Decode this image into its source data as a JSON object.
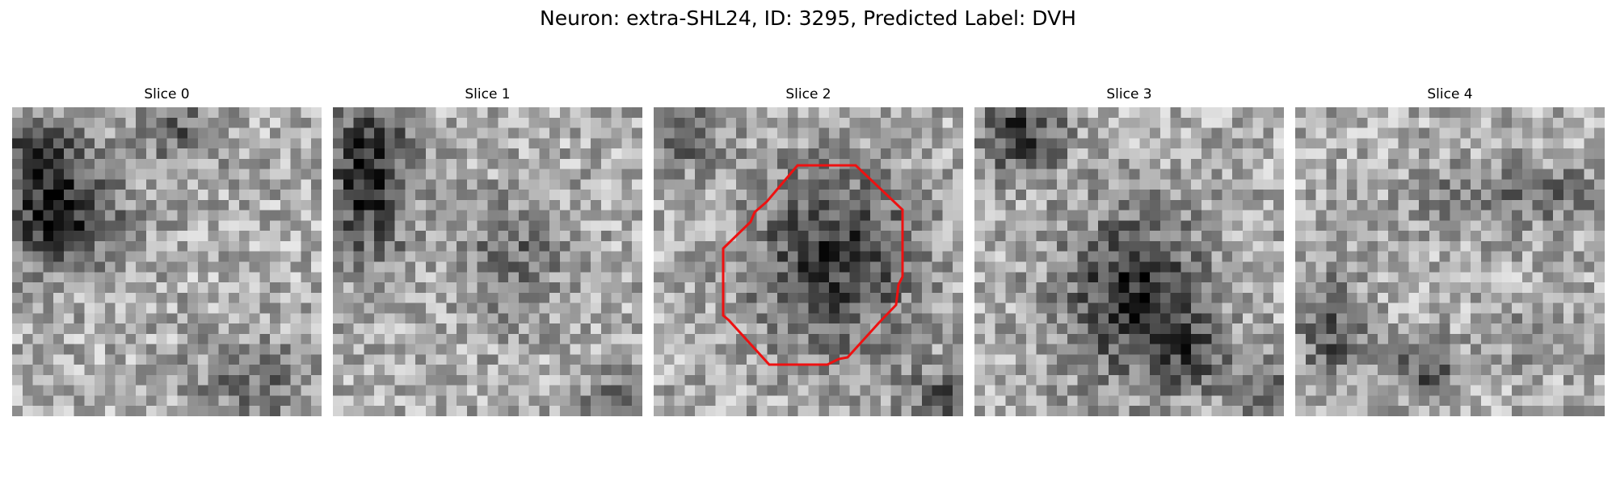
{
  "figure": {
    "title": "Neuron: extra-SHL24, ID: 3295, Predicted Label: DVH"
  },
  "slices": [
    {
      "label": "Slice 0",
      "has_contour": false
    },
    {
      "label": "Slice 1",
      "has_contour": false
    },
    {
      "label": "Slice 2",
      "has_contour": true
    },
    {
      "label": "Slice 3",
      "has_contour": false
    },
    {
      "label": "Slice 4",
      "has_contour": false
    }
  ],
  "colors": {
    "contour": "#ee1111",
    "background": "#ffffff"
  }
}
